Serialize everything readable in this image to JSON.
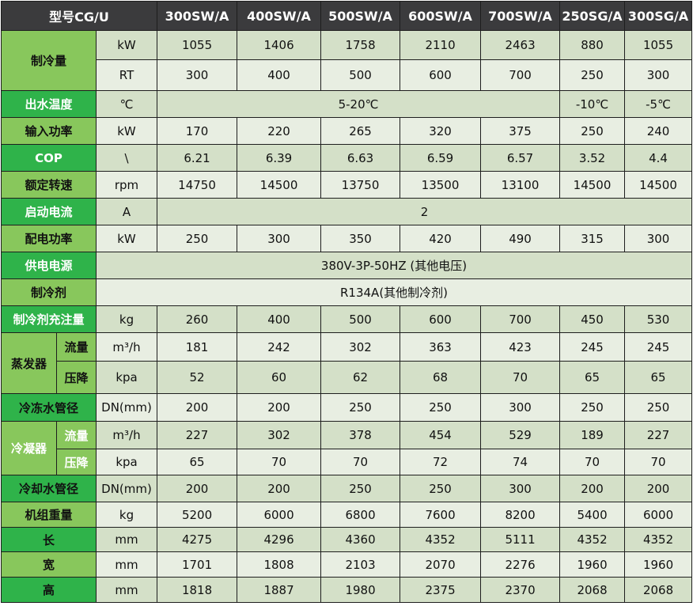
{
  "colors": {
    "header_bg": "#3b3b3d",
    "label_light": "#88c75c",
    "label_green": "#2fb34a",
    "row_dark": "#d4e0c8",
    "row_light": "#e8eee2",
    "text_dark": "#111111",
    "text_white": "#ffffff"
  },
  "header": {
    "label": "型号CG/U",
    "models": [
      "300SW/A",
      "400SW/A",
      "500SW/A",
      "600SW/A",
      "700SW/A",
      "250SG/A",
      "300SG/A"
    ]
  },
  "groups": [
    {
      "label": "制冷量",
      "tone": "light",
      "text": "dark",
      "rows": [
        {
          "unit": "kW",
          "values": [
            "1055",
            "1406",
            "1758",
            "2110",
            "2463",
            "880",
            "1055"
          ]
        },
        {
          "unit": "RT",
          "values": [
            "300",
            "400",
            "500",
            "600",
            "700",
            "250",
            "300"
          ]
        }
      ]
    },
    {
      "label": "出水温度",
      "tone": "green",
      "text": "white",
      "rows": [
        {
          "unit": "℃",
          "values": [
            "5-20℃",
            "-10℃",
            "-5℃"
          ]
        }
      ]
    },
    {
      "label": "输入功率",
      "tone": "light",
      "text": "dark",
      "rows": [
        {
          "unit": "kW",
          "values": [
            "170",
            "220",
            "265",
            "320",
            "375",
            "250",
            "240"
          ]
        }
      ]
    },
    {
      "label": "COP",
      "tone": "green",
      "text": "white",
      "rows": [
        {
          "unit": "\\",
          "values": [
            "6.21",
            "6.39",
            "6.63",
            "6.59",
            "6.57",
            "3.52",
            "4.4"
          ]
        }
      ]
    },
    {
      "label": "额定转速",
      "tone": "light",
      "text": "dark",
      "rows": [
        {
          "unit": "rpm",
          "values": [
            "14750",
            "14500",
            "13750",
            "13500",
            "13100",
            "14500",
            "14500"
          ]
        }
      ]
    },
    {
      "label": "启动电流",
      "tone": "green",
      "text": "white",
      "rows": [
        {
          "unit": "A",
          "values": [
            "2"
          ]
        }
      ]
    },
    {
      "label": "配电功率",
      "tone": "light",
      "text": "dark",
      "rows": [
        {
          "unit": "kW",
          "values": [
            "250",
            "300",
            "350",
            "420",
            "490",
            "315",
            "300"
          ]
        }
      ]
    },
    {
      "label": "供电电源",
      "tone": "green",
      "text": "white",
      "rows": [
        {
          "values": [
            "380V-3P-50HZ (其他电压)"
          ]
        }
      ]
    },
    {
      "label": "制冷剂",
      "tone": "light",
      "text": "dark",
      "rows": [
        {
          "values": [
            "R134A(其他制冷剂)"
          ]
        }
      ]
    },
    {
      "label": "制冷剂充注量",
      "tone": "green",
      "text": "white",
      "rows": [
        {
          "unit": "kg",
          "values": [
            "260",
            "400",
            "500",
            "600",
            "700",
            "450",
            "530"
          ]
        }
      ]
    },
    {
      "label": "蒸发器",
      "tone": "light",
      "text": "dark",
      "rows": [
        {
          "sublabel": "流量",
          "unit": "m³/h",
          "values": [
            "181",
            "242",
            "302",
            "363",
            "423",
            "245",
            "245"
          ]
        },
        {
          "sublabel": "压降",
          "unit": "kpa",
          "values": [
            "52",
            "60",
            "62",
            "68",
            "70",
            "65",
            "65"
          ]
        }
      ]
    },
    {
      "label": "冷冻水管径",
      "tone": "green",
      "text": "dark",
      "rows": [
        {
          "unit": "DN(mm)",
          "values": [
            "200",
            "200",
            "250",
            "250",
            "300",
            "250",
            "250"
          ]
        }
      ]
    },
    {
      "label": "冷凝器",
      "tone": "light",
      "text": "white",
      "rows": [
        {
          "sublabel": "流量",
          "unit": "m³/h",
          "values": [
            "227",
            "302",
            "378",
            "454",
            "529",
            "189",
            "227"
          ]
        },
        {
          "sublabel": "压降",
          "unit": "kpa",
          "values": [
            "65",
            "70",
            "70",
            "72",
            "74",
            "70",
            "70"
          ]
        }
      ]
    },
    {
      "label": "冷却水管径",
      "tone": "green",
      "text": "dark",
      "rows": [
        {
          "unit": "DN(mm)",
          "values": [
            "200",
            "200",
            "250",
            "250",
            "300",
            "200",
            "200"
          ]
        }
      ]
    },
    {
      "label": "机组重量",
      "tone": "light",
      "text": "dark",
      "rows": [
        {
          "unit": "kg",
          "values": [
            "5200",
            "6000",
            "6800",
            "7600",
            "8200",
            "5400",
            "6000"
          ]
        }
      ]
    },
    {
      "label": "长",
      "tone": "green",
      "text": "dark",
      "rows": [
        {
          "unit": "mm",
          "values": [
            "4275",
            "4296",
            "4360",
            "4352",
            "5111",
            "4352",
            "4352"
          ]
        }
      ]
    },
    {
      "label": "宽",
      "tone": "light",
      "text": "dark",
      "rows": [
        {
          "unit": "mm",
          "values": [
            "1701",
            "1808",
            "2103",
            "2070",
            "2276",
            "1960",
            "1960"
          ]
        }
      ]
    },
    {
      "label": "高",
      "tone": "green",
      "text": "dark",
      "rows": [
        {
          "unit": "mm",
          "values": [
            "1818",
            "1887",
            "1980",
            "2375",
            "2370",
            "2068",
            "2068"
          ]
        }
      ]
    }
  ]
}
